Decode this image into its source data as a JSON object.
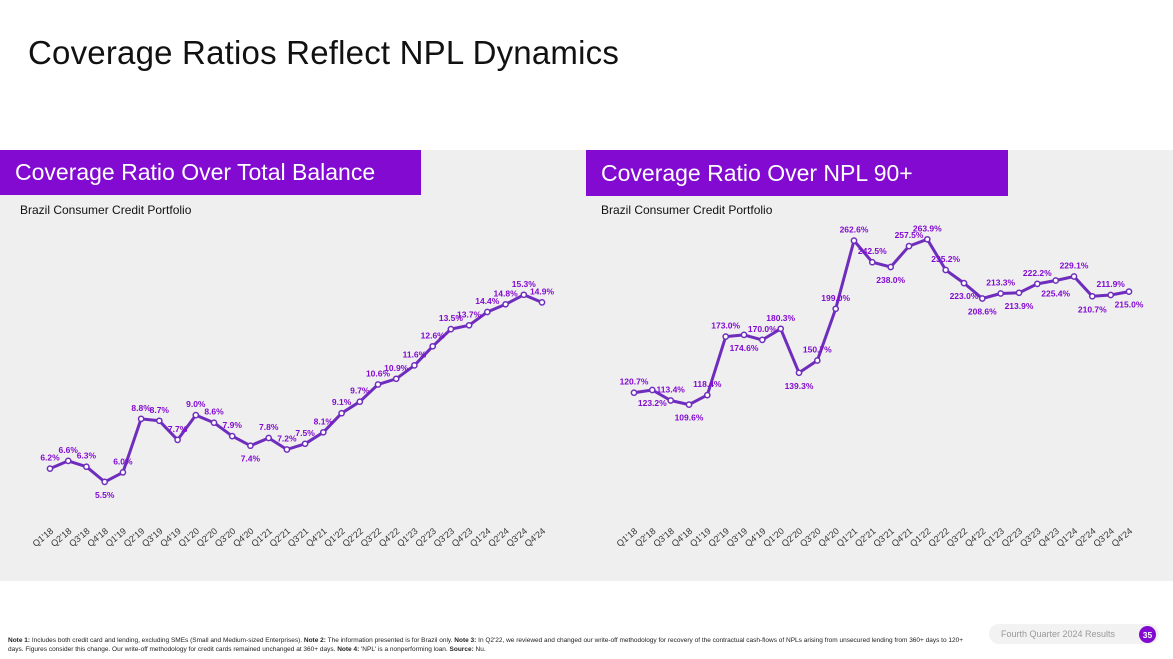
{
  "title": "Coverage Ratios Reflect NPL Dynamics",
  "colors": {
    "accent": "#820ad1",
    "panel_bg": "#efefef",
    "text": "#111111"
  },
  "chart_data": [
    {
      "type": "line",
      "title": "Coverage Ratio Over Total Balance",
      "subtitle": "Brazil Consumer Credit Portfolio",
      "categories": [
        "Q1'18",
        "Q2'18",
        "Q3'18",
        "Q4'18",
        "Q1'19",
        "Q2'19",
        "Q3'19",
        "Q4'19",
        "Q1'20",
        "Q2'20",
        "Q3'20",
        "Q4'20",
        "Q1'21",
        "Q2'21",
        "Q3'21",
        "Q4'21",
        "Q1'22",
        "Q2'22",
        "Q3'22",
        "Q4'22",
        "Q1'23",
        "Q2'23",
        "Q3'23",
        "Q4'23",
        "Q1'24",
        "Q2'24",
        "Q3'24",
        "Q4'24"
      ],
      "values": [
        6.2,
        6.6,
        6.3,
        5.5,
        6.0,
        8.8,
        8.7,
        7.7,
        9.0,
        8.6,
        7.9,
        7.4,
        7.8,
        7.2,
        7.5,
        8.1,
        9.1,
        9.7,
        10.6,
        10.9,
        11.6,
        12.6,
        13.5,
        13.7,
        14.4,
        14.8,
        15.3,
        14.9
      ],
      "labels": [
        "6.2%",
        "6.6%",
        "6.3%",
        "5.5%",
        "6.0%",
        "8.8%",
        "8.7%",
        "7.7%",
        "9.0%",
        "8.6%",
        "7.9%",
        "7.4%",
        "7.8%",
        "7.2%",
        "7.5%",
        "8.1%",
        "9.1%",
        "9.7%",
        "10.6%",
        "10.9%",
        "11.6%",
        "12.6%",
        "13.5%",
        "13.7%",
        "14.4%",
        "14.8%",
        "15.3%",
        "14.9%"
      ],
      "label_side": [
        "above",
        "above",
        "above",
        "below",
        "above",
        "above",
        "above",
        "above",
        "above",
        "above",
        "above",
        "below",
        "above",
        "above",
        "above",
        "above",
        "above",
        "above",
        "above",
        "above",
        "above",
        "above",
        "above",
        "above",
        "above",
        "above",
        "above",
        "above"
      ],
      "ylim": [
        0,
        20
      ],
      "xlabel": "",
      "ylabel": "",
      "grid": false,
      "legend": "none"
    },
    {
      "type": "line",
      "title": "Coverage Ratio Over NPL 90+",
      "subtitle": "Brazil Consumer Credit Portfolio",
      "categories": [
        "Q1'18",
        "Q2'18",
        "Q3'18",
        "Q4'18",
        "Q1'19",
        "Q2'19",
        "Q3'19",
        "Q4'19",
        "Q1'20",
        "Q2'20",
        "Q3'20",
        "Q4'20",
        "Q1'21",
        "Q2'21",
        "Q3'21",
        "Q4'21",
        "Q1'22",
        "Q2'22",
        "Q3'22",
        "Q4'22",
        "Q1'23",
        "Q2'23",
        "Q3'23",
        "Q4'23",
        "Q1'24",
        "Q2'24",
        "Q3'24",
        "Q4'24"
      ],
      "values": [
        120.7,
        123.2,
        113.4,
        109.6,
        118.4,
        173.0,
        174.6,
        170.0,
        180.3,
        139.3,
        150.7,
        199.0,
        262.6,
        242.5,
        238.0,
        257.5,
        263.9,
        235.2,
        223.0,
        208.6,
        213.3,
        213.9,
        222.2,
        225.4,
        229.1,
        210.7,
        211.9,
        215.0
      ],
      "labels": [
        "120.7%",
        "123.2%",
        "113.4%",
        "109.6%",
        "118.4%",
        "173.0%",
        "174.6%",
        "170.0%",
        "180.3%",
        "139.3%",
        "150.7%",
        "199.0%",
        "262.6%",
        "242.5%",
        "238.0%",
        "257.5%",
        "263.9%",
        "235.2%",
        "223.0%",
        "208.6%",
        "213.3%",
        "213.9%",
        "222.2%",
        "225.4%",
        "229.1%",
        "210.7%",
        "211.9%",
        "215.0%"
      ],
      "label_side": [
        "above",
        "below",
        "above",
        "below",
        "above",
        "above",
        "below",
        "above",
        "above",
        "below",
        "above",
        "above",
        "above",
        "above",
        "below",
        "above",
        "above",
        "above",
        "below",
        "below",
        "above",
        "below",
        "above",
        "below",
        "above",
        "below",
        "above",
        "below"
      ],
      "ylim": [
        0,
        350
      ],
      "xlabel": "",
      "ylabel": "",
      "grid": false,
      "legend": "none"
    }
  ],
  "footer": {
    "notes": [
      {
        "bold": "Note 1:",
        "text": " Includes both credit card and lending, excluding SMEs (Small and Medium-sized Enterprises). "
      },
      {
        "bold": "Note 2:",
        "text": " The information presented is for Brazil only. "
      },
      {
        "bold": "Note 3:",
        "text": " In Q2'22, we reviewed and changed our write-off methodology for recovery of the contractual cash-flows of NPLs arising from unsecured lending from 360+ days to 120+ days. Figures consider this change. Our write-off methodology for credit cards remained unchanged at 360+ days. "
      },
      {
        "bold": "Note 4:",
        "text": " 'NPL' is a nonperforming loan. "
      },
      {
        "bold": "Source:",
        "text": " Nu."
      }
    ],
    "label": "Fourth Quarter 2024 Results",
    "page_number": "35"
  }
}
